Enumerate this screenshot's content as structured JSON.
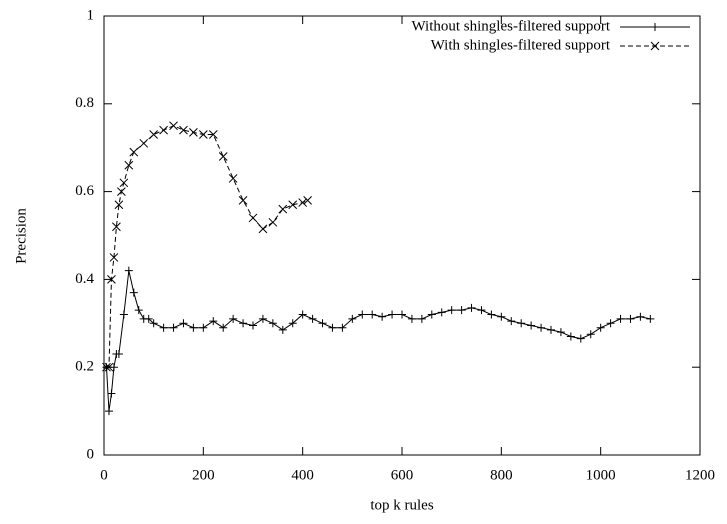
{
  "chart_data": {
    "type": "line",
    "xlabel": "top k rules",
    "ylabel": "Precision",
    "xlim": [
      0,
      1200
    ],
    "xticks": [
      0,
      200,
      400,
      600,
      800,
      1000,
      1200
    ],
    "ylim": [
      0,
      1
    ],
    "yticks": [
      0,
      0.2,
      0.4,
      0.6,
      0.8,
      1
    ],
    "legend": "top-right",
    "series": [
      {
        "name": "Without shingles-filtered support",
        "color": "#000000",
        "marker": "plus",
        "dash": "solid",
        "x": [
          5,
          10,
          15,
          20,
          25,
          30,
          40,
          50,
          60,
          70,
          80,
          90,
          100,
          120,
          140,
          160,
          180,
          200,
          220,
          240,
          260,
          280,
          300,
          320,
          340,
          360,
          380,
          400,
          420,
          440,
          460,
          480,
          500,
          520,
          540,
          560,
          580,
          600,
          620,
          640,
          660,
          680,
          700,
          720,
          740,
          760,
          780,
          800,
          820,
          840,
          860,
          880,
          900,
          920,
          940,
          960,
          980,
          1000,
          1020,
          1040,
          1060,
          1080,
          1100
        ],
        "values": [
          0.2,
          0.1,
          0.14,
          0.2,
          0.23,
          0.23,
          0.32,
          0.42,
          0.37,
          0.33,
          0.31,
          0.31,
          0.3,
          0.29,
          0.29,
          0.3,
          0.29,
          0.29,
          0.305,
          0.29,
          0.31,
          0.3,
          0.295,
          0.31,
          0.3,
          0.285,
          0.3,
          0.32,
          0.31,
          0.3,
          0.29,
          0.29,
          0.31,
          0.32,
          0.32,
          0.315,
          0.32,
          0.32,
          0.31,
          0.31,
          0.32,
          0.325,
          0.33,
          0.33,
          0.335,
          0.33,
          0.32,
          0.315,
          0.305,
          0.3,
          0.295,
          0.29,
          0.285,
          0.28,
          0.27,
          0.265,
          0.275,
          0.29,
          0.3,
          0.31,
          0.31,
          0.315,
          0.31
        ]
      },
      {
        "name": "With shingles-filtered support",
        "color": "#000000",
        "marker": "cross",
        "dash": "dashed",
        "x": [
          5,
          10,
          15,
          20,
          25,
          30,
          35,
          40,
          50,
          60,
          80,
          100,
          120,
          140,
          160,
          180,
          200,
          220,
          240,
          260,
          280,
          300,
          320,
          340,
          360,
          380,
          400,
          410
        ],
        "values": [
          0.2,
          0.2,
          0.4,
          0.45,
          0.52,
          0.57,
          0.6,
          0.62,
          0.66,
          0.69,
          0.71,
          0.73,
          0.74,
          0.75,
          0.74,
          0.735,
          0.73,
          0.73,
          0.68,
          0.63,
          0.58,
          0.54,
          0.515,
          0.53,
          0.56,
          0.57,
          0.575,
          0.58
        ]
      }
    ]
  }
}
